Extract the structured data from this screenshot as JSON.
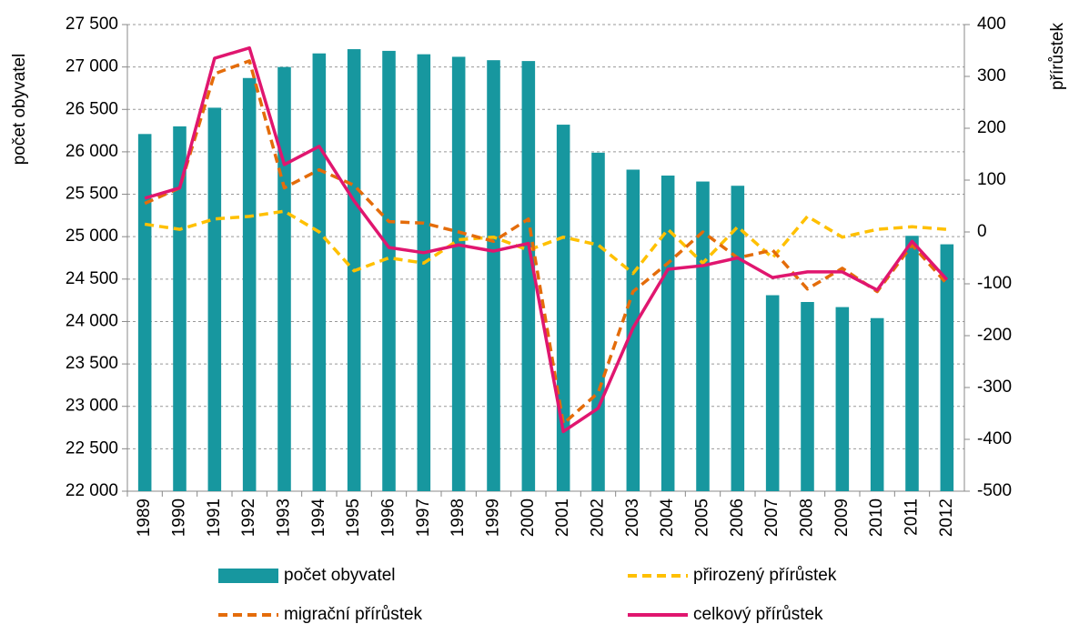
{
  "chart_data": {
    "type": "bar-line",
    "y_label": "počet obyvatel",
    "y2_label": "přírůstek",
    "categories": [
      "1989",
      "1990",
      "1991",
      "1992",
      "1993",
      "1994",
      "1995",
      "1996",
      "1997",
      "1998",
      "1999",
      "2000",
      "2001",
      "2002",
      "2003",
      "2004",
      "2005",
      "2006",
      "2007",
      "2008",
      "2009",
      "2010",
      "2011",
      "2012"
    ],
    "series": [
      {
        "name": "počet obyvatel",
        "type": "bar",
        "axis": "y",
        "color": "#17979f",
        "values": [
          26210,
          26300,
          26520,
          26870,
          27000,
          27160,
          27210,
          27190,
          27150,
          27120,
          27080,
          27070,
          26320,
          25990,
          25790,
          25720,
          25650,
          25600,
          24310,
          24230,
          24170,
          24040,
          25010,
          24910
        ]
      },
      {
        "name": "přirozený přírůstek",
        "type": "line",
        "axis": "y2",
        "color": "#ffc000",
        "dashed": true,
        "values": [
          15,
          5,
          25,
          30,
          40,
          0,
          -75,
          -50,
          -60,
          -15,
          -10,
          -35,
          -10,
          -25,
          -80,
          5,
          -60,
          10,
          -50,
          30,
          -10,
          5,
          10,
          5
        ]
      },
      {
        "name": "migrační přírůstek",
        "type": "line",
        "axis": "y2",
        "color": "#e46c0a",
        "dashed": true,
        "values": [
          55,
          85,
          305,
          330,
          85,
          120,
          90,
          20,
          17,
          0,
          -18,
          25,
          -370,
          -310,
          -115,
          -60,
          0,
          -50,
          -35,
          -110,
          -70,
          -115,
          -25,
          -100
        ]
      },
      {
        "name": "celkový přírůstek",
        "type": "line",
        "axis": "y2",
        "color": "#e0166f",
        "dashed": false,
        "values": [
          65,
          85,
          335,
          355,
          130,
          165,
          60,
          -30,
          -40,
          -25,
          -37,
          -22,
          -385,
          -340,
          -185,
          -72,
          -65,
          -50,
          -88,
          -77,
          -77,
          -112,
          -18,
          -92
        ]
      }
    ],
    "ylim": [
      22000,
      27500
    ],
    "yticks": [
      {
        "value": 22000,
        "label": "22 000"
      },
      {
        "value": 22500,
        "label": "22 500"
      },
      {
        "value": 23000,
        "label": "23 000"
      },
      {
        "value": 23500,
        "label": "23 500"
      },
      {
        "value": 24000,
        "label": "24 000"
      },
      {
        "value": 24500,
        "label": "24 500"
      },
      {
        "value": 25000,
        "label": "25 000"
      },
      {
        "value": 25500,
        "label": "25 500"
      },
      {
        "value": 26000,
        "label": "26 000"
      },
      {
        "value": 26500,
        "label": "26 500"
      },
      {
        "value": 27000,
        "label": "27 000"
      },
      {
        "value": 27500,
        "label": "27 500"
      }
    ],
    "y2lim": [
      -500,
      400
    ],
    "y2ticks": [
      -500,
      -400,
      -300,
      -200,
      -100,
      0,
      100,
      200,
      300,
      400
    ],
    "grid": true,
    "legend": "bottom"
  }
}
